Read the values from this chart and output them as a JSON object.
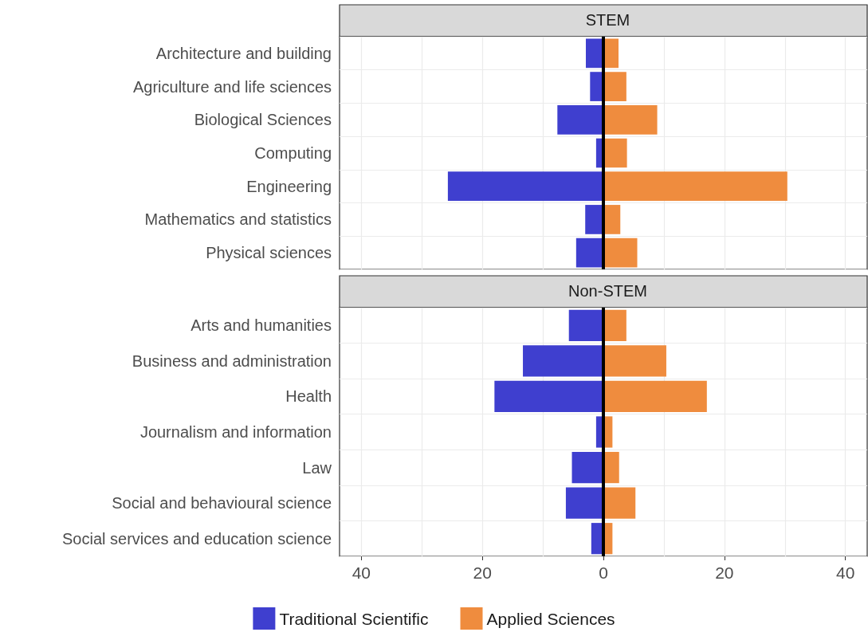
{
  "chart_data": [
    {
      "type": "bar",
      "orientation": "horizontal",
      "title": "STEM",
      "categories": [
        "Architecture and building",
        "Agriculture and life sciences",
        "Biological Sciences",
        "Computing",
        "Engineering",
        "Mathematics and statistics",
        "Physical sciences"
      ],
      "series": [
        {
          "color": "#3f3fcf",
          "values": [
            -2.9,
            -2.2,
            -7.6,
            -1.2,
            -25.7,
            -3.0,
            -4.5
          ]
        },
        {
          "color": "#ef8c3e",
          "values": [
            2.5,
            3.8,
            8.9,
            3.9,
            30.4,
            2.8,
            5.6
          ]
        }
      ],
      "stacked": true,
      "xlim": [
        -43.6,
        43.6
      ],
      "xticks": [
        -40,
        -30,
        -20,
        -10,
        0,
        10,
        20,
        30,
        40
      ],
      "ref_lines": [
        {
          "axis": "x",
          "value": 0,
          "color": "#000000"
        }
      ],
      "grid": true,
      "legend": false,
      "tick_labels": "y"
    },
    {
      "type": "bar",
      "orientation": "horizontal",
      "title": "Non-STEM",
      "categories": [
        "Arts and humanities",
        "Business and administration",
        "Health",
        "Journalism and information",
        "Law",
        "Social and behavioural science",
        "Social services and education science"
      ],
      "series": [
        {
          "name": "Traditional Scientific",
          "color": "#3f3fcf",
          "values": [
            -5.7,
            -13.3,
            -18.0,
            -1.2,
            -5.2,
            -6.2,
            -2.0
          ]
        },
        {
          "name": "Applied Sciences",
          "color": "#ef8c3e",
          "values": [
            3.8,
            10.4,
            17.1,
            1.5,
            2.6,
            5.3,
            1.5
          ]
        }
      ],
      "xlim": [
        -43.6,
        43.6
      ],
      "xticks": [
        {
          "value": -40,
          "label": "40"
        },
        {
          "value": -30,
          "label": null
        },
        {
          "value": -20,
          "label": "20"
        },
        {
          "value": -10,
          "label": null
        },
        0,
        {
          "value": 10,
          "label": null
        },
        20,
        {
          "value": 30,
          "label": null
        },
        40
      ],
      "stacked": true,
      "ref_lines": [
        {
          "axis": "x",
          "value": 0,
          "color": "#000000"
        }
      ],
      "grid": true,
      "legend": "bottom"
    }
  ]
}
